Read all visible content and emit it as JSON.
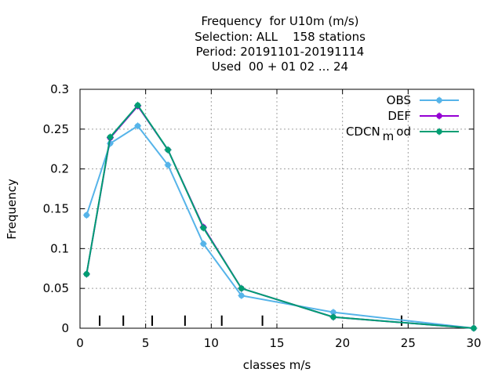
{
  "chart_data": {
    "type": "line",
    "title_lines": [
      "Frequency  for U10m (m/s)",
      "Selection: ALL    158 stations",
      "Period: 20191101-20191114",
      "Used  00 + 01 02 ... 24"
    ],
    "xlabel": "classes m/s",
    "ylabel": "Frequency",
    "xlim": [
      0,
      30
    ],
    "ylim": [
      0,
      0.3
    ],
    "x_ticks": [
      "0",
      "5",
      "10",
      "15",
      "20",
      "25",
      "30"
    ],
    "y_ticks": [
      "0",
      "0.05",
      "0.1",
      "0.15",
      "0.2",
      "0.25",
      "0.3"
    ],
    "grid": true,
    "legend_position": "top-right",
    "class_markers": [
      1.5,
      3.3,
      5.5,
      8.0,
      10.8,
      13.9,
      24.5
    ],
    "series": [
      {
        "name": "OBS",
        "color": "#56b4e9",
        "x": [
          0.5,
          2.3,
          4.4,
          6.7,
          9.4,
          12.3,
          19.3,
          30.0
        ],
        "y": [
          0.142,
          0.232,
          0.254,
          0.205,
          0.106,
          0.041,
          0.02,
          0.0
        ]
      },
      {
        "name": "DEF",
        "color": "#9400d3",
        "x": [
          0.5,
          2.3,
          4.4,
          6.7,
          9.4,
          12.3,
          19.3,
          30.0
        ],
        "y": [
          0.068,
          0.239,
          0.279,
          0.224,
          0.127,
          0.05,
          0.014,
          0.0
        ]
      },
      {
        "name": "CDCN",
        "name_subscript": "m",
        "name_suffix": "od",
        "color": "#009e73",
        "x": [
          0.5,
          2.3,
          4.4,
          6.7,
          9.4,
          12.3,
          19.3,
          30.0
        ],
        "y": [
          0.068,
          0.24,
          0.28,
          0.224,
          0.126,
          0.05,
          0.014,
          0.0
        ]
      }
    ]
  }
}
